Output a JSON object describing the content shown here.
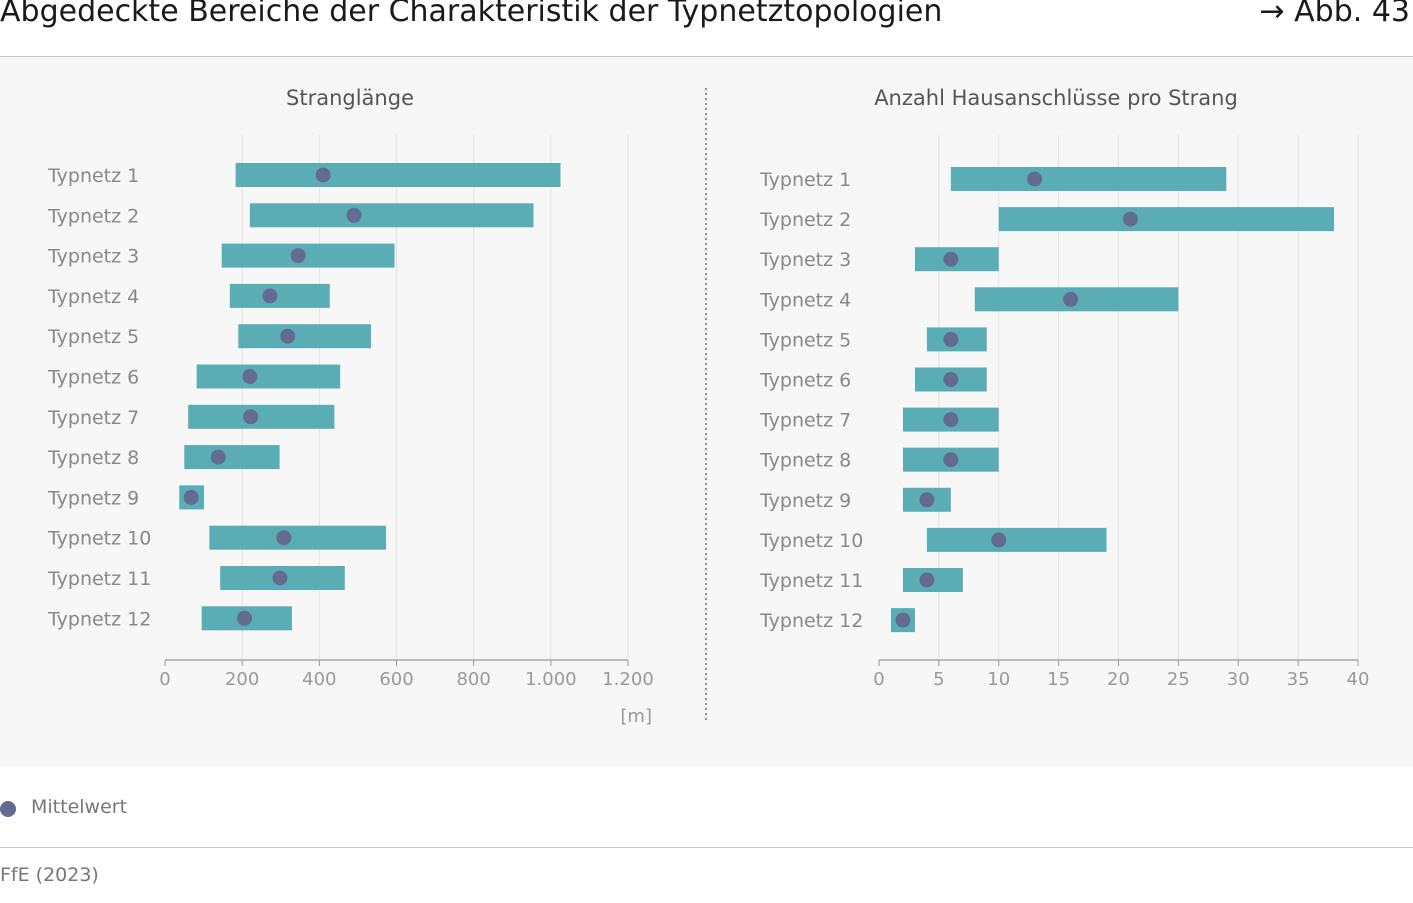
{
  "header": {
    "title": "Abgedeckte Bereiche der Charakteristik der Typnetztopologien",
    "figure_ref": "→ Abb. 43"
  },
  "legend": {
    "label": "Mittelwert",
    "color": "#636b91"
  },
  "source": "FfE (2023)",
  "colors": {
    "bar": "#5aadb5",
    "mean": "#636b91",
    "panel_bg": "#f7f7f7"
  },
  "chart_data": [
    {
      "type": "bar",
      "title": "Stranglänge",
      "xlabel": "[m]",
      "xlim": [
        0,
        1200
      ],
      "xticks": [
        0,
        200,
        400,
        600,
        800,
        1000,
        1200
      ],
      "xtick_labels": [
        "0",
        "200",
        "400",
        "600",
        "800",
        "1.000",
        "1.200"
      ],
      "grid": true,
      "categories": [
        "Typnetz 1",
        "Typnetz 2",
        "Typnetz 3",
        "Typnetz 4",
        "Typnetz 5",
        "Typnetz 6",
        "Typnetz 7",
        "Typnetz 8",
        "Typnetz 9",
        "Typnetz 10",
        "Typnetz 11",
        "Typnetz 12"
      ],
      "ranges": [
        [
          183,
          1025
        ],
        [
          220,
          955
        ],
        [
          147,
          595
        ],
        [
          168,
          427
        ],
        [
          190,
          534
        ],
        [
          82,
          454
        ],
        [
          60,
          439
        ],
        [
          50,
          297
        ],
        [
          37,
          101
        ],
        [
          115,
          573
        ],
        [
          143,
          466
        ],
        [
          95,
          329
        ]
      ],
      "mean": [
        410,
        490,
        345,
        272,
        318,
        220,
        222,
        138,
        68,
        308,
        298,
        206
      ]
    },
    {
      "type": "bar",
      "title": "Anzahl Hausanschlüsse pro Strang",
      "xlabel": "",
      "xlim": [
        0,
        40
      ],
      "xticks": [
        0,
        5,
        10,
        15,
        20,
        25,
        30,
        35,
        40
      ],
      "xtick_labels": [
        "0",
        "5",
        "10",
        "15",
        "20",
        "25",
        "30",
        "35",
        "40"
      ],
      "grid": true,
      "categories": [
        "Typnetz 1",
        "Typnetz 2",
        "Typnetz 3",
        "Typnetz 4",
        "Typnetz 5",
        "Typnetz 6",
        "Typnetz 7",
        "Typnetz 8",
        "Typnetz 9",
        "Typnetz 10",
        "Typnetz 11",
        "Typnetz 12"
      ],
      "ranges": [
        [
          6,
          29
        ],
        [
          10,
          38
        ],
        [
          3,
          10
        ],
        [
          8,
          25
        ],
        [
          4,
          9
        ],
        [
          3,
          9
        ],
        [
          2,
          10
        ],
        [
          2,
          10
        ],
        [
          2,
          6
        ],
        [
          4,
          19
        ],
        [
          2,
          7
        ],
        [
          1,
          3
        ]
      ],
      "mean": [
        13,
        21,
        6,
        16,
        6,
        6,
        6,
        6,
        4,
        10,
        4,
        2
      ]
    }
  ]
}
